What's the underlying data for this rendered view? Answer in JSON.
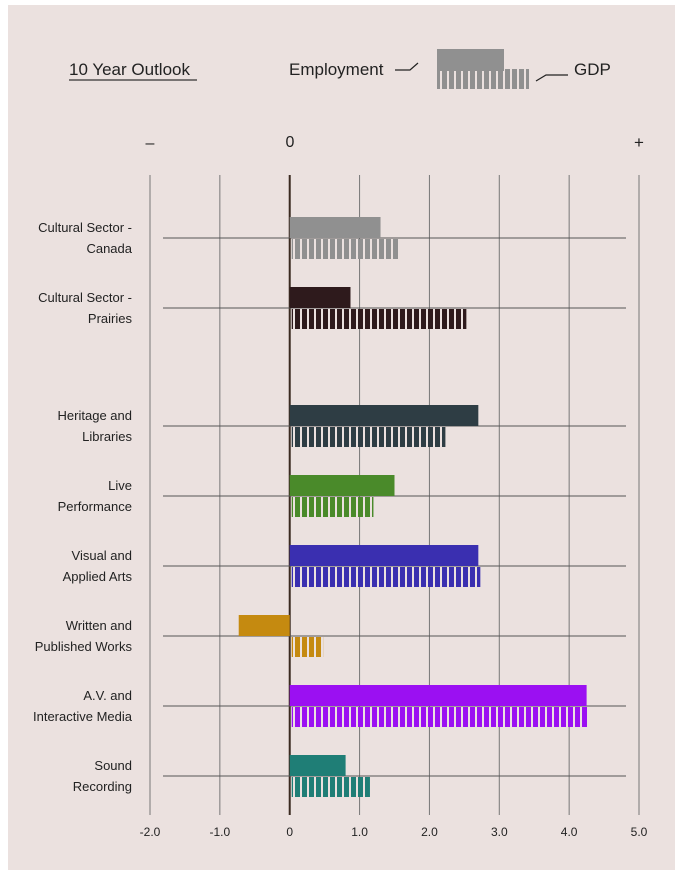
{
  "chart_data": {
    "type": "bar",
    "title": "10 Year Outlook",
    "legend": {
      "employment_label": "Employment",
      "gdp_label": "GDP",
      "employment_color": "#909090",
      "gdp_color": "#909090",
      "placement": "top-right"
    },
    "sign_labels": {
      "minus": "–",
      "zero": "0",
      "plus": "+"
    },
    "xlim": [
      -2.0,
      5.0
    ],
    "x_ticks": [
      "-2.0",
      "-1.0",
      "0",
      "1.0",
      "2.0",
      "3.0",
      "4.0",
      "5.0"
    ],
    "x_tick_values": [
      -2,
      -1,
      0,
      1,
      2,
      3,
      4,
      5
    ],
    "grid": true,
    "categories": [
      {
        "line1": "Cultural Sector -",
        "line2": "Canada",
        "employment": 1.3,
        "gdp": 1.55,
        "color": "#909090"
      },
      {
        "line1": "Cultural Sector -",
        "line2": "Prairies",
        "employment": 0.87,
        "gdp": 2.5,
        "color": "#2e1a1c"
      },
      {
        "line1": "Heritage and",
        "line2": "Libraries",
        "employment": 2.7,
        "gdp": 2.2,
        "color": "#2e3d44"
      },
      {
        "line1": "Live",
        "line2": "Performance",
        "employment": 1.5,
        "gdp": 1.17,
        "color": "#4a8a2a"
      },
      {
        "line1": "Visual and",
        "line2": "Applied Arts",
        "employment": 2.7,
        "gdp": 2.7,
        "color": "#3a2fb0"
      },
      {
        "line1": "Written and",
        "line2": "Published Works",
        "employment": -0.73,
        "gdp": 0.45,
        "color": "#c58a10"
      },
      {
        "line1": "A.V. and",
        "line2": "Interactive Media",
        "employment": 4.25,
        "gdp": 4.25,
        "color": "#9b10f2"
      },
      {
        "line1": "Sound",
        "line2": "Recording",
        "employment": 0.8,
        "gdp": 1.12,
        "color": "#1f7e76"
      }
    ]
  }
}
